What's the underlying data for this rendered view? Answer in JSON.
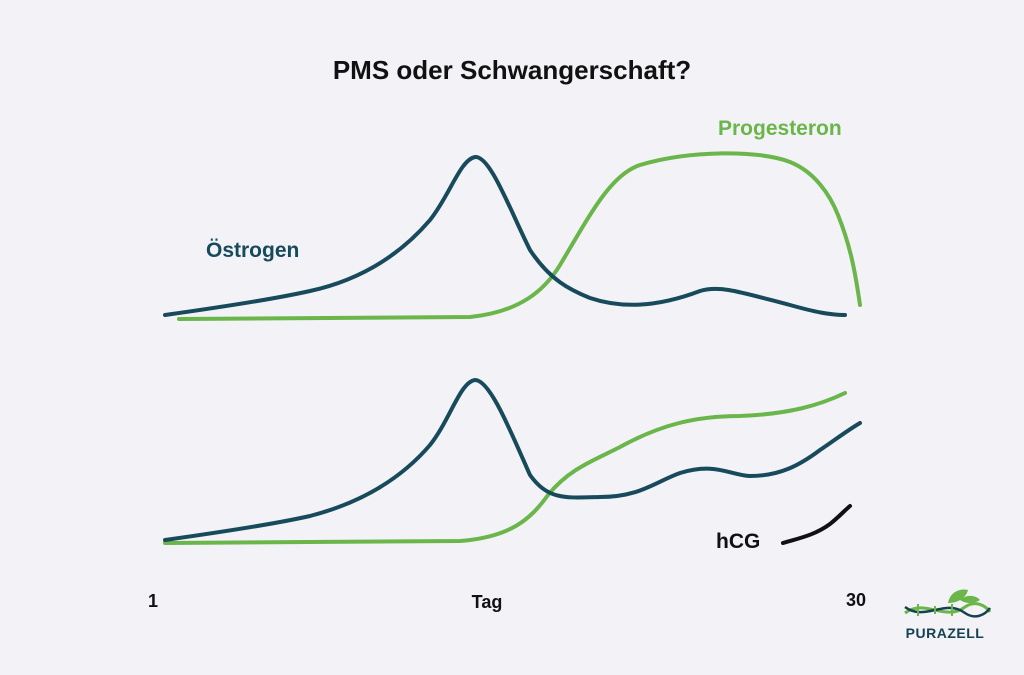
{
  "chart_data": [
    {
      "type": "line",
      "title": "PMS oder Schwangerschaft?",
      "x_range": [
        1,
        30
      ],
      "series": [
        {
          "name": "Östrogen",
          "color": "#174a5a",
          "points": [
            [
              1,
              0.0
            ],
            [
              4,
              0.08
            ],
            [
              7,
              0.19
            ],
            [
              9,
              0.35
            ],
            [
              11,
              0.6
            ],
            [
              12,
              1.0
            ],
            [
              13,
              0.6
            ],
            [
              14,
              0.2
            ],
            [
              16,
              0.1
            ],
            [
              19,
              0.17
            ],
            [
              21,
              0.11
            ],
            [
              23,
              0.01
            ]
          ]
        },
        {
          "name": "Progesteron",
          "color": "#6ab64a",
          "points": [
            [
              1,
              0.0
            ],
            [
              12,
              0.01
            ],
            [
              14,
              0.07
            ],
            [
              15,
              0.2
            ],
            [
              17,
              0.66
            ],
            [
              19,
              0.93
            ],
            [
              20,
              0.97
            ],
            [
              22,
              0.93
            ],
            [
              24,
              0.77
            ],
            [
              25,
              0.07
            ]
          ]
        }
      ]
    },
    {
      "type": "line",
      "x_range": [
        1,
        30
      ],
      "series": [
        {
          "name": "Östrogen",
          "color": "#174a5a",
          "points": [
            [
              1,
              0.0
            ],
            [
              4,
              0.1
            ],
            [
              7,
              0.2
            ],
            [
              9,
              0.35
            ],
            [
              11,
              0.65
            ],
            [
              12,
              1.0
            ],
            [
              13,
              0.65
            ],
            [
              14,
              0.25
            ],
            [
              15,
              0.25
            ],
            [
              18,
              0.4
            ],
            [
              20,
              0.4
            ],
            [
              23,
              0.55
            ],
            [
              25,
              0.7
            ]
          ]
        },
        {
          "name": "Progesteron",
          "color": "#6ab64a",
          "points": [
            [
              1,
              0.0
            ],
            [
              12,
              0.01
            ],
            [
              14,
              0.1
            ],
            [
              15,
              0.3
            ],
            [
              17,
              0.5
            ],
            [
              19,
              0.69
            ],
            [
              21,
              0.75
            ],
            [
              23,
              0.78
            ],
            [
              25,
              0.9
            ]
          ]
        },
        {
          "name": "hCG",
          "color": "#111111",
          "points": [
            [
              21,
              0.0
            ],
            [
              23,
              0.08
            ],
            [
              25,
              0.3
            ]
          ]
        }
      ]
    }
  ],
  "axis": {
    "x_start": "1",
    "x_label": "Tag",
    "x_end": "30"
  },
  "logo": {
    "brand": "PURAZELL"
  }
}
